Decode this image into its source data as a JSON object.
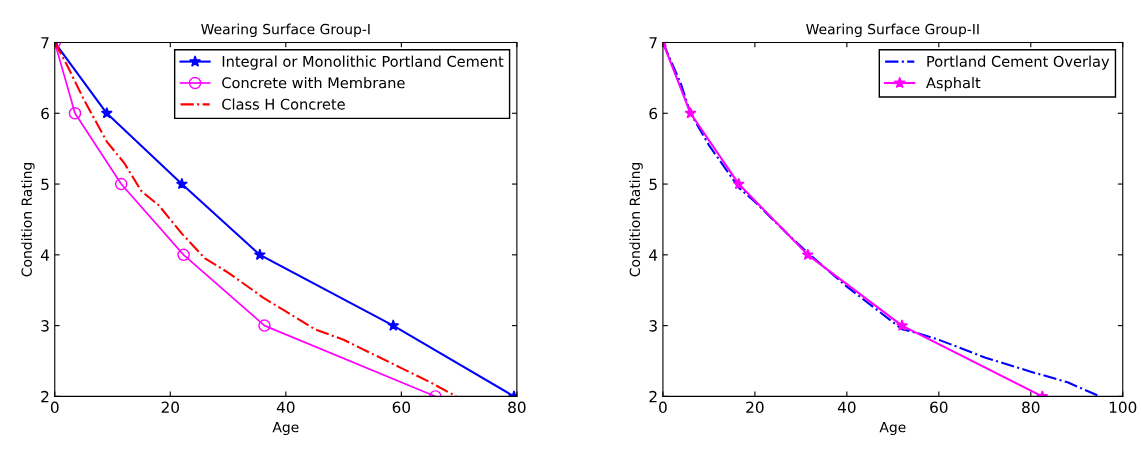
{
  "chart_data": [
    {
      "type": "line",
      "title": "Wearing Surface Group-I",
      "xlabel": "Age",
      "ylabel": "Condition Rating",
      "xlim": [
        0,
        80
      ],
      "xticks": [
        0,
        20,
        40,
        60,
        80
      ],
      "ylim": [
        2,
        7
      ],
      "yticks": [
        2,
        3,
        4,
        5,
        6,
        7
      ],
      "legend": "top right",
      "grid": false,
      "series": [
        {
          "name": "Integral or Monolithic Portland Cement",
          "color": "#0000ff",
          "marker": "star",
          "line_style": "solid",
          "x": [
            0,
            9,
            22,
            35.5,
            58.6,
            79.5
          ],
          "values": [
            7,
            6,
            5,
            4,
            3,
            2
          ]
        },
        {
          "name": "Concrete with Membrane",
          "color": "#ff00ff",
          "marker": "circle",
          "line_style": "solid",
          "x": [
            0,
            3.5,
            11.5,
            22.3,
            36.3,
            65.9
          ],
          "values": [
            7,
            6,
            5,
            4,
            3,
            2
          ]
        },
        {
          "name": "Class H Concrete",
          "color": "#ff0000",
          "marker": "none",
          "line_style": "dashdot",
          "x": [
            0,
            2,
            5,
            9,
            12,
            15,
            18,
            22,
            26,
            30,
            36,
            40,
            45,
            50,
            55,
            60,
            65,
            69.5
          ],
          "values": [
            7,
            6.7,
            6.2,
            5.6,
            5.3,
            4.9,
            4.7,
            4.3,
            3.95,
            3.75,
            3.4,
            3.2,
            2.95,
            2.8,
            2.6,
            2.4,
            2.2,
            2
          ]
        }
      ]
    },
    {
      "type": "line",
      "title": "Wearing Surface Group-II",
      "xlabel": "Age",
      "ylabel": "Condition Rating",
      "xlim": [
        0,
        100
      ],
      "xticks": [
        0,
        20,
        40,
        60,
        80,
        100
      ],
      "ylim": [
        2,
        7
      ],
      "yticks": [
        2,
        3,
        4,
        5,
        6,
        7
      ],
      "legend": "top right",
      "grid": false,
      "series": [
        {
          "name": "Portland Cement Overlay",
          "color": "#0000ff",
          "marker": "none",
          "line_style": "dashdot",
          "x": [
            0,
            4,
            6,
            10,
            16.5,
            20,
            27,
            32,
            40,
            46,
            52,
            55,
            60,
            70,
            80,
            88,
            95
          ],
          "values": [
            7,
            6.4,
            6,
            5.55,
            4.95,
            4.75,
            4.3,
            4.0,
            3.55,
            3.25,
            2.95,
            2.9,
            2.8,
            2.55,
            2.35,
            2.2,
            2.0
          ]
        },
        {
          "name": "Asphalt",
          "color": "#ff00ff",
          "marker": "star",
          "line_style": "solid",
          "x": [
            0,
            6,
            16.5,
            31.5,
            52,
            82.5
          ],
          "values": [
            7,
            6,
            5,
            4,
            3,
            2
          ]
        }
      ]
    }
  ]
}
